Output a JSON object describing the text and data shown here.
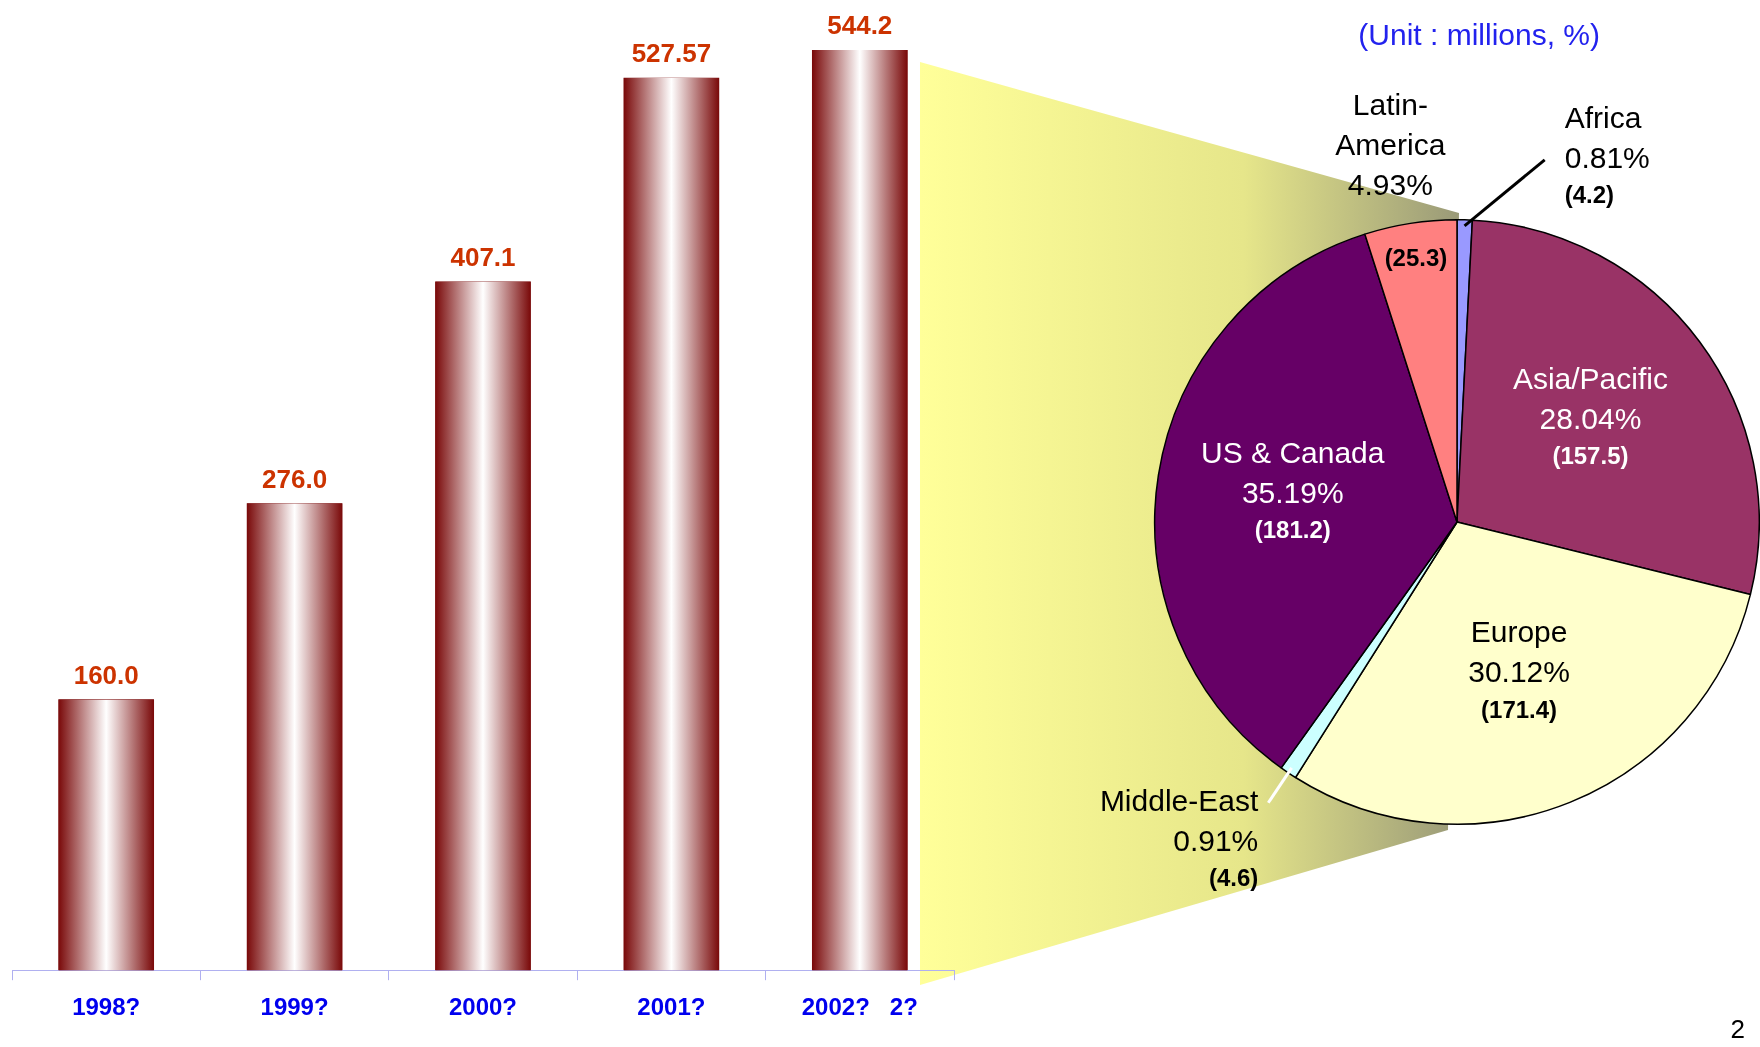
{
  "chart_data": [
    {
      "type": "bar",
      "categories": [
        "1998?",
        "1999?",
        "2000?",
        "2001?",
        "2002?   2?"
      ],
      "values": [
        160.0,
        276.0,
        407.1,
        527.57,
        544.2
      ],
      "value_labels": [
        "160.0",
        "276.0",
        "407.1",
        "527.57",
        "544.2"
      ],
      "color": "#7a0a0a"
    },
    {
      "type": "pie",
      "subtitle": "(Unit : millions, %)",
      "categories": [
        "Africa",
        "Asia/Pacific",
        "Europe",
        "Middle-East",
        "US & Canada",
        "Latin-America"
      ],
      "values": [
        0.81,
        28.04,
        30.12,
        0.91,
        35.19,
        4.93
      ],
      "value_labels": [
        "0.81%",
        "28.04%",
        "30.12%",
        "0.91%",
        "35.19%",
        "4.93%"
      ],
      "colors": [
        "#9999ff",
        "#993366",
        "#ffffcc",
        "#ccffff",
        "#660066",
        "#ff8080"
      ],
      "annotations": [
        {
          "text": "(4.2)",
          "x": "Africa"
        },
        {
          "text": "(157.5)",
          "x": "Asia/Pacific"
        },
        {
          "text": "(171.4)",
          "x": "Europe"
        },
        {
          "text": "(4.6)",
          "x": "Middle-East"
        },
        {
          "text": "(181.2)",
          "x": "US & Canada"
        },
        {
          "text": "(25.3)",
          "x": "Latin-America"
        },
        "2"
      ]
    }
  ]
}
